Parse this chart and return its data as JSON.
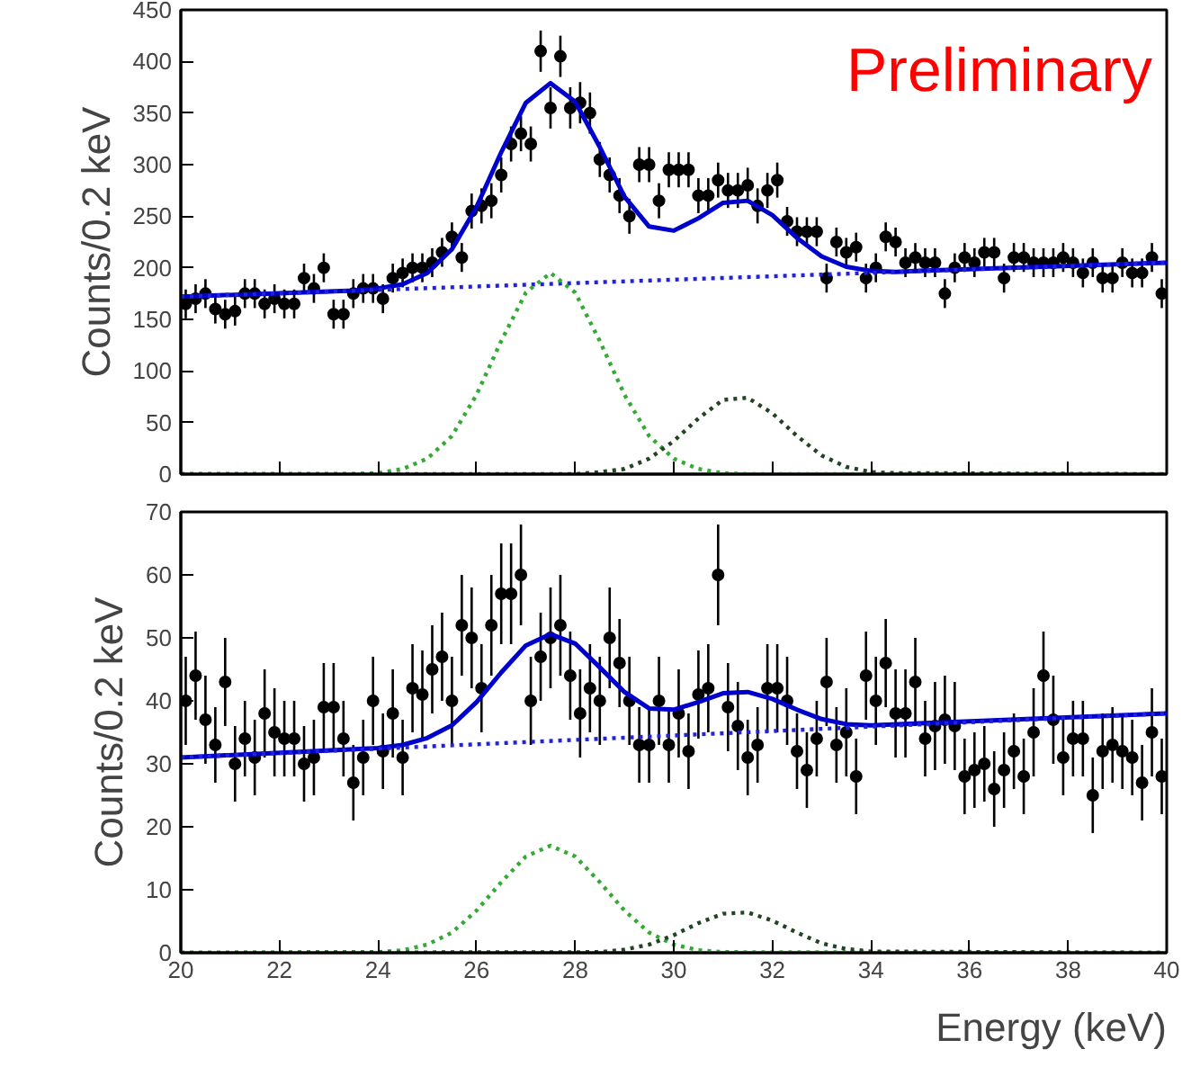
{
  "chart_data": [
    {
      "type": "scatter",
      "ylabel": "Counts/0.2 keV",
      "annotations": [
        "Preliminary"
      ],
      "xlim": [
        20,
        40
      ],
      "xticks": [
        20,
        22,
        24,
        26,
        28,
        30,
        32,
        34,
        36,
        38,
        40
      ],
      "ylim": [
        0,
        450
      ],
      "yticks": [
        0,
        50,
        100,
        150,
        200,
        250,
        300,
        350,
        400,
        450
      ],
      "tick_labels": "y",
      "grid": false,
      "series": [
        {
          "color": "#000000",
          "marker": "circle",
          "x": [
            20.1,
            20.3,
            20.5,
            20.7,
            20.9,
            21.1,
            21.3,
            21.5,
            21.7,
            21.9,
            22.1,
            22.3,
            22.5,
            22.7,
            22.9,
            23.1,
            23.3,
            23.5,
            23.7,
            23.9,
            24.1,
            24.3,
            24.5,
            24.7,
            24.9,
            25.1,
            25.3,
            25.5,
            25.7,
            25.9,
            26.1,
            26.3,
            26.5,
            26.7,
            26.9,
            27.1,
            27.3,
            27.5,
            27.7,
            27.9,
            28.1,
            28.3,
            28.5,
            28.7,
            28.9,
            29.1,
            29.3,
            29.5,
            29.7,
            29.9,
            30.1,
            30.3,
            30.5,
            30.7,
            30.9,
            31.1,
            31.3,
            31.5,
            31.7,
            31.9,
            32.1,
            32.3,
            32.5,
            32.7,
            32.9,
            33.1,
            33.3,
            33.5,
            33.7,
            33.9,
            34.1,
            34.3,
            34.5,
            34.7,
            34.9,
            35.1,
            35.3,
            35.5,
            35.7,
            35.9,
            36.1,
            36.3,
            36.5,
            36.7,
            36.9,
            37.1,
            37.3,
            37.5,
            37.7,
            37.9,
            38.1,
            38.3,
            38.5,
            38.7,
            38.9,
            39.1,
            39.3,
            39.5,
            39.7,
            39.9
          ],
          "values": [
            165,
            170,
            175,
            160,
            155,
            158,
            175,
            175,
            165,
            170,
            165,
            165,
            190,
            180,
            200,
            155,
            155,
            175,
            180,
            180,
            170,
            190,
            195,
            200,
            200,
            205,
            215,
            230,
            210,
            255,
            260,
            265,
            290,
            320,
            330,
            320,
            410,
            355,
            405,
            355,
            360,
            350,
            305,
            290,
            270,
            250,
            300,
            300,
            265,
            295,
            295,
            295,
            270,
            270,
            285,
            275,
            275,
            280,
            260,
            275,
            285,
            245,
            235,
            235,
            235,
            190,
            225,
            215,
            220,
            190,
            200,
            230,
            225,
            205,
            210,
            205,
            205,
            175,
            200,
            210,
            205,
            215,
            215,
            190,
            210,
            210,
            205,
            205,
            205,
            210,
            205,
            195,
            205,
            190,
            190,
            205,
            195,
            195,
            210,
            175
          ],
          "errors": [
            14,
            14,
            14,
            14,
            14,
            14,
            14,
            14,
            14,
            14,
            14,
            14,
            14,
            14,
            14,
            14,
            14,
            14,
            14,
            14,
            14,
            14,
            14,
            14,
            14,
            14,
            14,
            14,
            14,
            17,
            17,
            17,
            17,
            17,
            17,
            17,
            20,
            20,
            20,
            20,
            20,
            20,
            17,
            17,
            17,
            17,
            17,
            17,
            17,
            17,
            17,
            17,
            17,
            17,
            17,
            17,
            17,
            17,
            17,
            17,
            17,
            14,
            14,
            14,
            14,
            14,
            14,
            14,
            14,
            14,
            14,
            14,
            14,
            14,
            14,
            14,
            14,
            14,
            14,
            14,
            14,
            14,
            14,
            14,
            14,
            14,
            14,
            14,
            14,
            14,
            14,
            14,
            14,
            14,
            14,
            14,
            14,
            14,
            14,
            14
          ]
        },
        {
          "type": "line",
          "color": "#0000cc",
          "line_style": "solid",
          "x": [
            20,
            23,
            23.5,
            24,
            24.5,
            25,
            25.5,
            26,
            26.5,
            27,
            27.5,
            28,
            28.5,
            29,
            29.5,
            30,
            30.5,
            31,
            31.5,
            32,
            32.5,
            33,
            33.5,
            34,
            34.5,
            35,
            40
          ],
          "values": [
            172,
            177,
            178,
            180,
            184,
            195,
            218,
            259,
            312,
            360,
            379,
            361,
            317,
            269,
            240,
            236,
            248,
            263,
            265,
            251,
            229,
            211,
            201,
            197,
            196,
            197,
            205
          ]
        },
        {
          "type": "line",
          "color": "#2222dd",
          "line_style": "dotted",
          "x": [
            20,
            40
          ],
          "values": [
            172,
            205
          ]
        },
        {
          "type": "line",
          "color": "#33aa33",
          "line_style": "dotted",
          "x": [
            20,
            23.5,
            24,
            24.5,
            25,
            25.5,
            26,
            26.5,
            27,
            27.5,
            28,
            28.5,
            29,
            29.5,
            30,
            30.5,
            31,
            31.5,
            40
          ],
          "values": [
            0,
            0,
            1,
            5,
            15,
            37,
            77,
            129,
            176,
            195,
            176,
            129,
            77,
            37,
            15,
            5,
            1,
            0,
            0
          ]
        },
        {
          "type": "line",
          "color": "#224422",
          "line_style": "dotted",
          "x": [
            20,
            28,
            28.5,
            29,
            29.5,
            30,
            30.5,
            31,
            31.5,
            32,
            32.5,
            33,
            33.5,
            34,
            34.5,
            40
          ],
          "values": [
            0,
            0,
            2,
            5,
            15,
            32,
            54,
            72,
            74,
            59,
            37,
            18,
            7,
            2,
            1,
            0
          ]
        }
      ]
    },
    {
      "type": "scatter",
      "ylabel": "Counts/0.2 keV",
      "xlabel": "Energy (keV)",
      "xlim": [
        20,
        40
      ],
      "xticks": [
        20,
        22,
        24,
        26,
        28,
        30,
        32,
        34,
        36,
        38,
        40
      ],
      "ylim": [
        0,
        70
      ],
      "yticks": [
        0,
        10,
        20,
        30,
        40,
        50,
        60,
        70
      ],
      "grid": false,
      "series": [
        {
          "color": "#000000",
          "marker": "circle",
          "x": [
            20.1,
            20.3,
            20.5,
            20.7,
            20.9,
            21.1,
            21.3,
            21.5,
            21.7,
            21.9,
            22.1,
            22.3,
            22.5,
            22.7,
            22.9,
            23.1,
            23.3,
            23.5,
            23.7,
            23.9,
            24.1,
            24.3,
            24.5,
            24.7,
            24.9,
            25.1,
            25.3,
            25.5,
            25.7,
            25.9,
            26.1,
            26.3,
            26.5,
            26.7,
            26.9,
            27.1,
            27.3,
            27.5,
            27.7,
            27.9,
            28.1,
            28.3,
            28.5,
            28.7,
            28.9,
            29.1,
            29.3,
            29.5,
            29.7,
            29.9,
            30.1,
            30.3,
            30.5,
            30.7,
            30.9,
            31.1,
            31.3,
            31.5,
            31.7,
            31.9,
            32.1,
            32.3,
            32.5,
            32.7,
            32.9,
            33.1,
            33.3,
            33.5,
            33.7,
            33.9,
            34.1,
            34.3,
            34.5,
            34.7,
            34.9,
            35.1,
            35.3,
            35.5,
            35.7,
            35.9,
            36.1,
            36.3,
            36.5,
            36.7,
            36.9,
            37.1,
            37.3,
            37.5,
            37.7,
            37.9,
            38.1,
            38.3,
            38.5,
            38.7,
            38.9,
            39.1,
            39.3,
            39.5,
            39.7,
            39.9
          ],
          "values": [
            40,
            44,
            37,
            33,
            43,
            30,
            34,
            31,
            38,
            35,
            34,
            34,
            30,
            31,
            39,
            39,
            34,
            27,
            31,
            40,
            32,
            38,
            31,
            42,
            41,
            45,
            47,
            40,
            52,
            50,
            42,
            52,
            57,
            57,
            60,
            40,
            47,
            50,
            52,
            44,
            38,
            42,
            40,
            50,
            46,
            40,
            33,
            33,
            40,
            33,
            38,
            32,
            41,
            42,
            60,
            39,
            36,
            31,
            33,
            42,
            42,
            40,
            32,
            29,
            34,
            43,
            33,
            35,
            28,
            44,
            40,
            46,
            38,
            38,
            43,
            34,
            36,
            37,
            36,
            28,
            29,
            30,
            26,
            29,
            32,
            28,
            35,
            44,
            37,
            31,
            34,
            34,
            25,
            32,
            33,
            32,
            31,
            27,
            35,
            28
          ],
          "errors": [
            7,
            7,
            7,
            6,
            7,
            6,
            6,
            6,
            7,
            7,
            6,
            6,
            6,
            6,
            7,
            7,
            6,
            6,
            6,
            7,
            6,
            7,
            6,
            7,
            7,
            7,
            7,
            7,
            8,
            8,
            7,
            8,
            8,
            8,
            8,
            7,
            7,
            8,
            8,
            7,
            7,
            7,
            7,
            8,
            7,
            7,
            6,
            6,
            7,
            6,
            7,
            6,
            7,
            7,
            8,
            7,
            7,
            6,
            6,
            7,
            7,
            7,
            6,
            6,
            6,
            7,
            6,
            7,
            6,
            7,
            7,
            7,
            7,
            7,
            7,
            6,
            7,
            7,
            7,
            6,
            6,
            6,
            6,
            6,
            6,
            6,
            7,
            7,
            7,
            6,
            6,
            6,
            6,
            6,
            6,
            6,
            6,
            6,
            7,
            6
          ]
        },
        {
          "type": "line",
          "color": "#0000cc",
          "line_style": "solid",
          "x": [
            20,
            24,
            24.5,
            25,
            25.5,
            26,
            26.5,
            27,
            27.5,
            28,
            28.5,
            29,
            29.5,
            30,
            30.5,
            31,
            31.5,
            32,
            32.5,
            33,
            33.5,
            34,
            40
          ],
          "values": [
            31,
            32.5,
            33,
            34.1,
            36.1,
            39.8,
            44.5,
            48.8,
            50.6,
            49.1,
            45.3,
            41.4,
            38.8,
            38.6,
            39.8,
            41.2,
            41.4,
            40.3,
            38.6,
            37.1,
            36.3,
            36.1,
            38
          ]
        },
        {
          "type": "line",
          "color": "#2222dd",
          "line_style": "dotted",
          "x": [
            20,
            40
          ],
          "values": [
            31,
            38
          ]
        },
        {
          "type": "line",
          "color": "#33aa33",
          "line_style": "dotted",
          "x": [
            20,
            24,
            24.5,
            25,
            25.5,
            26,
            26.5,
            27,
            27.5,
            28,
            28.5,
            29,
            29.5,
            30,
            30.5,
            31,
            40
          ],
          "values": [
            0,
            0.1,
            0.4,
            1.3,
            3.2,
            6.7,
            11.2,
            15.3,
            17,
            15.3,
            11.2,
            6.7,
            3.2,
            1.3,
            0.4,
            0.1,
            0
          ]
        },
        {
          "type": "line",
          "color": "#224422",
          "line_style": "dotted",
          "x": [
            20,
            28.5,
            29,
            29.5,
            30,
            30.5,
            31,
            31.5,
            32,
            32.5,
            33,
            33.5,
            34,
            40
          ],
          "values": [
            0,
            0.1,
            0.5,
            1.3,
            2.8,
            4.7,
            6.2,
            6.4,
            5.1,
            3.2,
            1.5,
            0.6,
            0.2,
            0
          ]
        }
      ]
    }
  ]
}
